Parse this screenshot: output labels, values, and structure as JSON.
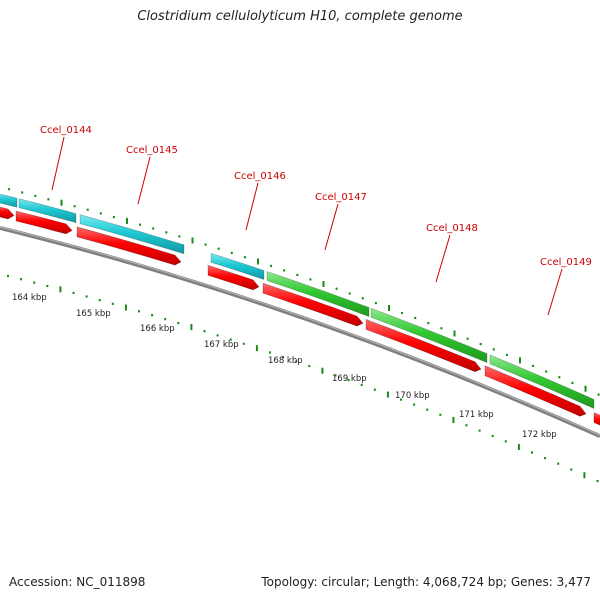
{
  "title": "Clostridium cellulolyticum H10, complete genome",
  "footer": {
    "accession": "Accession: NC_011898",
    "summary": "Topology: circular; Length: 4,068,724 bp; Genes: 3,477"
  },
  "colors": {
    "cds_forward": "#ff0000",
    "gene_cyan": "#1ec8d2",
    "gene_green": "#32c832",
    "backbone": "#808080",
    "ticks": "#1a8a1a",
    "label": "#cc0000"
  },
  "scale_labels": [
    "164 kbp",
    "165 kbp",
    "166 kbp",
    "167 kbp",
    "168 kbp",
    "169 kbp",
    "170 kbp",
    "171 kbp",
    "172 kbp"
  ],
  "gene_labels": [
    "Ccel_0144",
    "Ccel_0145",
    "Ccel_0146",
    "Ccel_0147",
    "Ccel_0148",
    "Ccel_0149"
  ]
}
